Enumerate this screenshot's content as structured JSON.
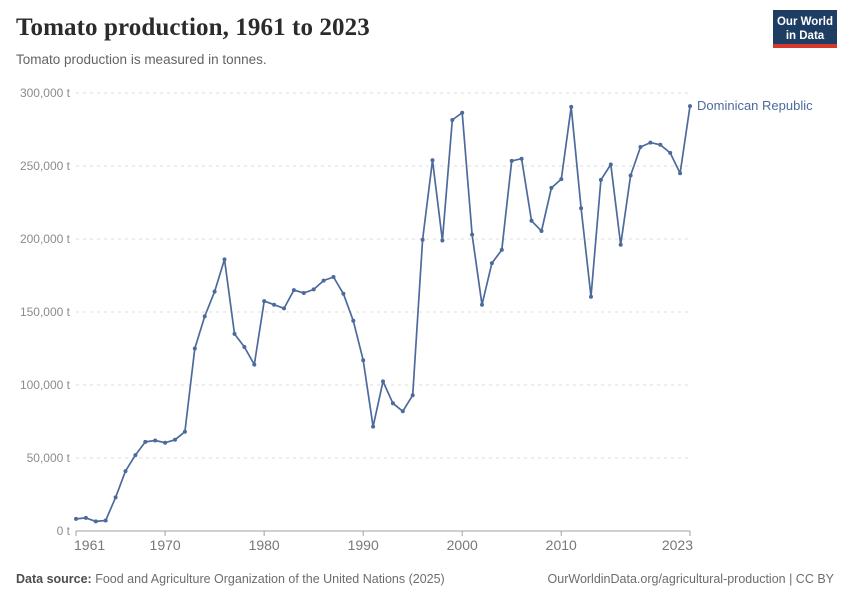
{
  "header": {
    "title": "Tomato production, 1961 to 2023",
    "subtitle": "Tomato production is measured in tonnes.",
    "logo_line1": "Our World",
    "logo_line2": "in Data"
  },
  "colors": {
    "line": "#4C6A9C",
    "entity_label": "#4C6A9C",
    "grid": "#dcdcdc",
    "axis": "#a1a1a1",
    "tick_label": "#8c8c8c",
    "x_tick_label": "#787878",
    "logo_bg": "#1d3d63",
    "logo_stripe": "#d7382e"
  },
  "chart_data": {
    "type": "line",
    "title": "Tomato production, 1961 to 2023",
    "unit": "t",
    "entity": "Dominican Republic",
    "grid": "horizontal-dashed",
    "legend_position": "end-of-line-label",
    "xlim": [
      1961,
      2023
    ],
    "ylim": [
      0,
      300000
    ],
    "xticks": [
      1961,
      1970,
      1980,
      1990,
      2000,
      2010,
      2023
    ],
    "yticks": [
      0,
      50000,
      100000,
      150000,
      200000,
      250000,
      300000
    ],
    "x": [
      1961,
      1962,
      1963,
      1964,
      1965,
      1966,
      1967,
      1968,
      1969,
      1970,
      1971,
      1972,
      1973,
      1974,
      1975,
      1976,
      1977,
      1978,
      1979,
      1980,
      1981,
      1982,
      1983,
      1984,
      1985,
      1986,
      1987,
      1988,
      1989,
      1990,
      1991,
      1992,
      1993,
      1994,
      1995,
      1996,
      1997,
      1998,
      1999,
      2000,
      2001,
      2002,
      2003,
      2004,
      2005,
      2006,
      2007,
      2008,
      2009,
      2010,
      2011,
      2012,
      2013,
      2014,
      2015,
      2016,
      2017,
      2018,
      2019,
      2020,
      2021,
      2022,
      2023
    ],
    "values": [
      8300,
      9000,
      6600,
      7200,
      23000,
      41000,
      52000,
      61000,
      62000,
      60500,
      62500,
      68000,
      125000,
      147000,
      164000,
      186000,
      135000,
      126000,
      114000,
      157500,
      155000,
      152500,
      165000,
      163000,
      165500,
      171500,
      174000,
      162500,
      144000,
      117000,
      71500,
      102500,
      87500,
      82000,
      93000,
      199500,
      254000,
      199000,
      281500,
      286500,
      203000,
      155000,
      183500,
      192500,
      253500,
      255000,
      212500,
      205500,
      235000,
      241000,
      290500,
      221000,
      160500,
      240500,
      251000,
      196000,
      243500,
      263000,
      266000,
      264500,
      259000,
      245000,
      291000
    ]
  },
  "footer": {
    "datasource_label": "Data source:",
    "datasource_text": " Food and Agriculture Organization of the United Nations (2025)",
    "link_text": "OurWorldinData.org/agricultural-production | CC BY"
  }
}
